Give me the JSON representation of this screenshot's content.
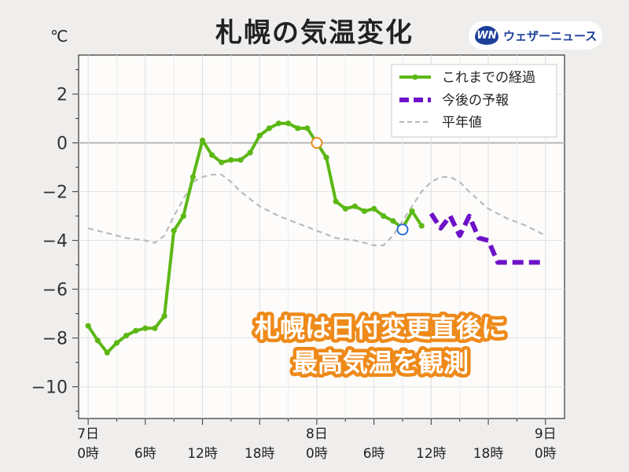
{
  "header": {
    "title": "札幌の気温変化",
    "unit": "℃",
    "brand_logo": "WN",
    "brand_name": "ウェザーニュース"
  },
  "chart_data": {
    "type": "line",
    "title": "札幌の気温変化",
    "ylabel": "℃",
    "xlabel": "",
    "ylim": [
      -11.3,
      3.6
    ],
    "xlim": [
      -1,
      50
    ],
    "grid": true,
    "legend_position": "top-right",
    "y_ticks": [
      2,
      0,
      -2,
      -4,
      -6,
      -8,
      -10
    ],
    "y_tick_labels": [
      "2",
      "0",
      "−2",
      "−4",
      "−6",
      "−8",
      "−10"
    ],
    "x_ticks": [
      {
        "hour": 0,
        "day": "7日",
        "time": "0時"
      },
      {
        "hour": 6,
        "day": "",
        "time": "6時"
      },
      {
        "hour": 12,
        "day": "",
        "time": "12時"
      },
      {
        "hour": 18,
        "day": "",
        "time": "18時"
      },
      {
        "hour": 24,
        "day": "8日",
        "time": "0時"
      },
      {
        "hour": 30,
        "day": "",
        "time": "6時"
      },
      {
        "hour": 36,
        "day": "",
        "time": "12時"
      },
      {
        "hour": 42,
        "day": "",
        "time": "18時"
      },
      {
        "hour": 48,
        "day": "9日",
        "time": "0時"
      }
    ],
    "series": [
      {
        "name": "これまでの経過",
        "color": "#5cb815",
        "x": [
          0,
          1,
          2,
          3,
          4,
          5,
          6,
          7,
          8,
          9,
          10,
          11,
          12,
          13,
          14,
          15,
          16,
          17,
          18,
          19,
          20,
          21,
          22,
          23,
          24,
          25,
          26,
          27,
          28,
          29,
          30,
          31,
          32,
          33,
          34,
          35
        ],
        "y": [
          -7.5,
          -8.1,
          -8.6,
          -8.2,
          -7.9,
          -7.7,
          -7.6,
          -7.6,
          -7.1,
          -3.6,
          -3.0,
          -1.4,
          0.1,
          -0.5,
          -0.8,
          -0.7,
          -0.7,
          -0.4,
          0.3,
          0.6,
          0.8,
          0.8,
          0.6,
          0.6,
          0.0,
          -0.6,
          -2.4,
          -2.7,
          -2.6,
          -2.8,
          -2.7,
          -3.0,
          -3.2,
          -3.5,
          -2.8,
          -3.4
        ]
      },
      {
        "name": "今後の予報",
        "color": "#6e12c8",
        "x": [
          36,
          37,
          38,
          39,
          40,
          41,
          42,
          43,
          44,
          45,
          46,
          47,
          48
        ],
        "y": [
          -2.9,
          -3.5,
          -3.0,
          -3.8,
          -3.0,
          -3.9,
          -4.0,
          -4.9,
          -4.9,
          -4.9,
          -4.9,
          -4.9,
          -4.9
        ]
      },
      {
        "name": "平年値",
        "color": "#bbbbbb",
        "x": [
          0,
          2,
          4,
          6,
          7,
          8,
          9,
          10,
          11,
          12,
          13,
          14,
          15,
          16,
          18,
          20,
          22,
          24,
          26,
          28,
          30,
          31,
          32,
          33,
          34,
          35,
          36,
          37,
          38,
          39,
          40,
          42,
          44,
          46,
          48
        ],
        "y": [
          -3.5,
          -3.7,
          -3.9,
          -4.0,
          -4.1,
          -3.8,
          -3.0,
          -2.3,
          -1.6,
          -1.4,
          -1.3,
          -1.3,
          -1.6,
          -2.0,
          -2.6,
          -3.0,
          -3.3,
          -3.6,
          -3.9,
          -4.0,
          -4.2,
          -4.2,
          -3.8,
          -3.2,
          -2.6,
          -2.0,
          -1.6,
          -1.4,
          -1.4,
          -1.6,
          -2.0,
          -2.7,
          -3.1,
          -3.4,
          -3.8
        ]
      }
    ],
    "markers": [
      {
        "x": 24,
        "y": 0.0,
        "color": "#ee8a1a"
      },
      {
        "x": 33,
        "y": -3.55,
        "color": "#2a6fd6"
      }
    ],
    "annotation": [
      "札幌は日付変更直後に",
      "最高気温を観測"
    ]
  }
}
